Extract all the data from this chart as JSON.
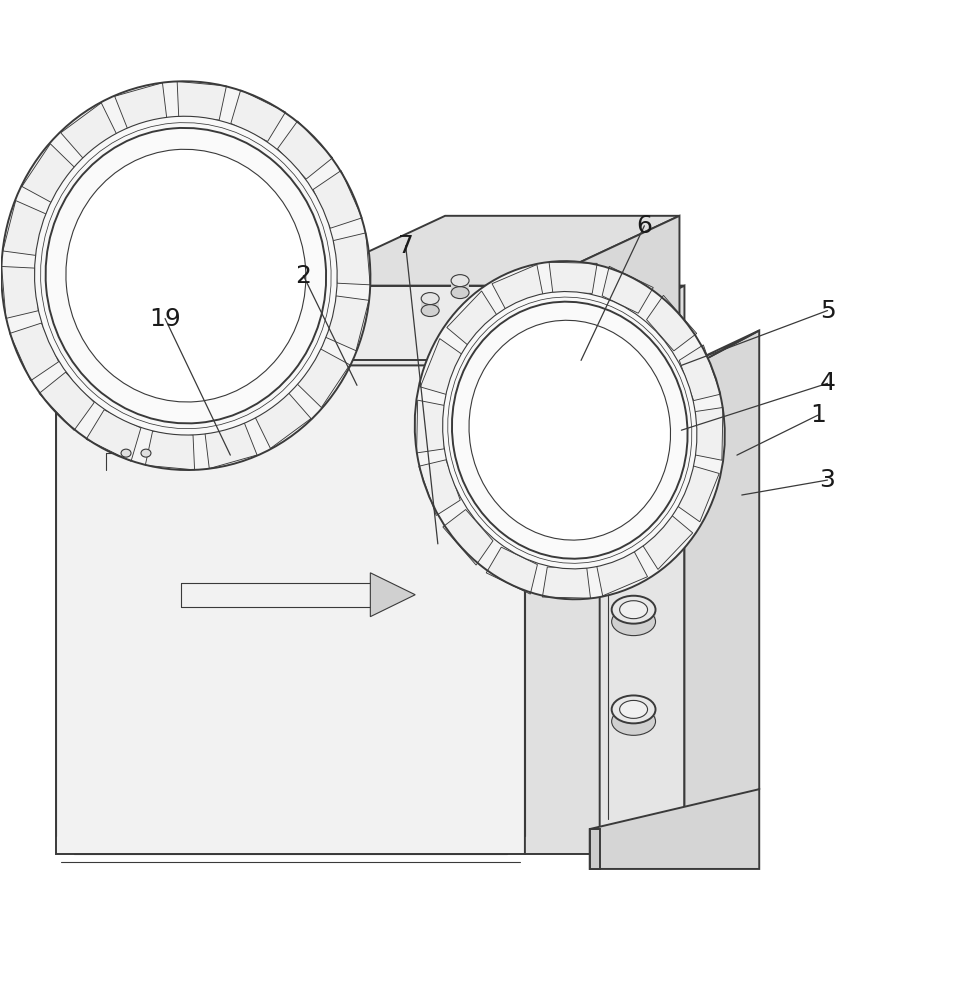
{
  "bg_color": "#ffffff",
  "line_color": "#3a3a3a",
  "lw_main": 1.4,
  "lw_thin": 0.8,
  "lw_extra": 0.6,
  "fig_width": 9.77,
  "fig_height": 10.0,
  "annotations": [
    {
      "label": "1",
      "from": [
        0.755,
        0.455
      ],
      "to": [
        0.838,
        0.415
      ]
    },
    {
      "label": "2",
      "from": [
        0.365,
        0.385
      ],
      "to": [
        0.31,
        0.275
      ]
    },
    {
      "label": "3",
      "from": [
        0.76,
        0.495
      ],
      "to": [
        0.848,
        0.48
      ]
    },
    {
      "label": "4",
      "from": [
        0.698,
        0.43
      ],
      "to": [
        0.848,
        0.383
      ]
    },
    {
      "label": "5",
      "from": [
        0.698,
        0.365
      ],
      "to": [
        0.848,
        0.31
      ]
    },
    {
      "label": "6",
      "from": [
        0.595,
        0.36
      ],
      "to": [
        0.66,
        0.225
      ]
    },
    {
      "label": "7",
      "from": [
        0.448,
        0.544
      ],
      "to": [
        0.415,
        0.245
      ]
    },
    {
      "label": "19",
      "from": [
        0.235,
        0.455
      ],
      "to": [
        0.168,
        0.318
      ]
    }
  ]
}
